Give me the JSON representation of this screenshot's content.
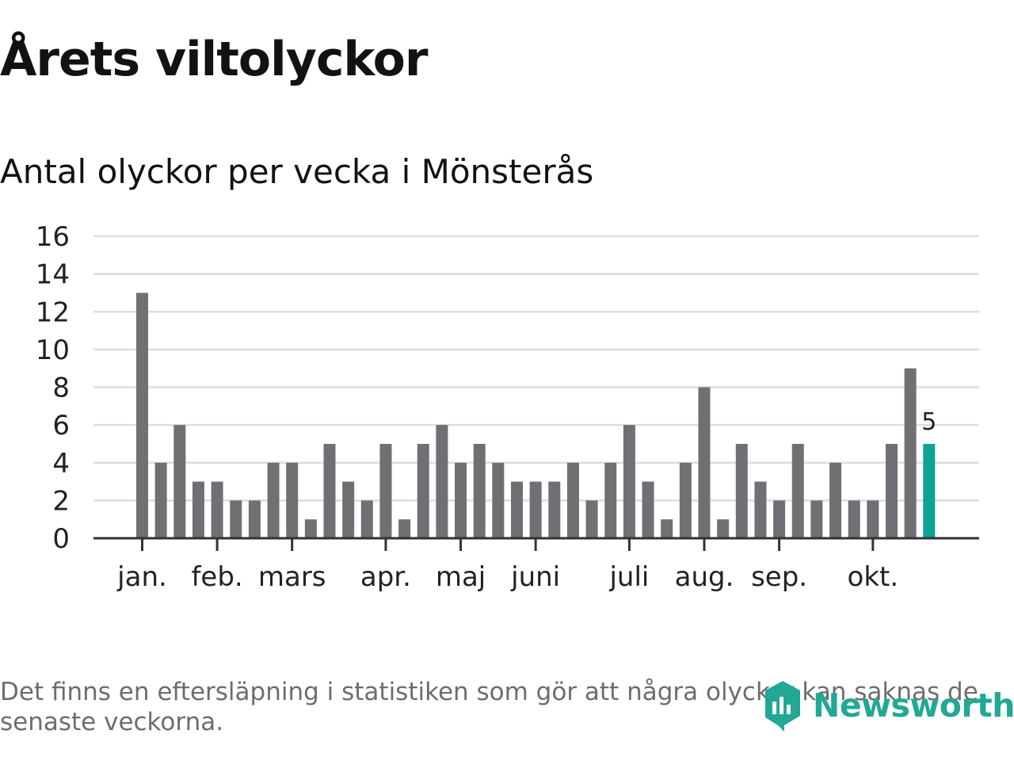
{
  "header": {
    "title": "Årets viltolyckor",
    "subtitle": "Antal olyckor per vecka i Mönsterås"
  },
  "footer": {
    "note": "Det finns en eftersläpning i statistiken som gör att några olyckor kan saknas de senaste veckorna.",
    "brand": "Newsworthy"
  },
  "chart_data": {
    "type": "bar",
    "title": "Antal olyckor per vecka i Mönsterås",
    "xlabel": "",
    "ylabel": "",
    "ylim": [
      0,
      16
    ],
    "yticks": [
      0,
      2,
      4,
      6,
      8,
      10,
      12,
      14,
      16
    ],
    "grid": true,
    "values": [
      13,
      4,
      6,
      3,
      3,
      2,
      2,
      4,
      4,
      1,
      5,
      3,
      2,
      5,
      1,
      5,
      6,
      4,
      5,
      4,
      3,
      3,
      3,
      4,
      2,
      4,
      6,
      3,
      1,
      4,
      8,
      1,
      5,
      3,
      2,
      5,
      2,
      4,
      2,
      2,
      5,
      9,
      5
    ],
    "month_ticks": [
      {
        "label": "jan.",
        "week_index": 0
      },
      {
        "label": "feb.",
        "week_index": 4
      },
      {
        "label": "mars",
        "week_index": 8
      },
      {
        "label": "apr.",
        "week_index": 13
      },
      {
        "label": "maj",
        "week_index": 17
      },
      {
        "label": "juni",
        "week_index": 21
      },
      {
        "label": "juli",
        "week_index": 26
      },
      {
        "label": "aug.",
        "week_index": 30
      },
      {
        "label": "sep.",
        "week_index": 34
      },
      {
        "label": "okt.",
        "week_index": 39
      }
    ],
    "highlight": {
      "week_index": 42,
      "label": "5"
    },
    "colors": {
      "bar": "#706f74",
      "highlight": "#0fa393",
      "grid": "#dddddd",
      "axis": "#333333"
    }
  }
}
